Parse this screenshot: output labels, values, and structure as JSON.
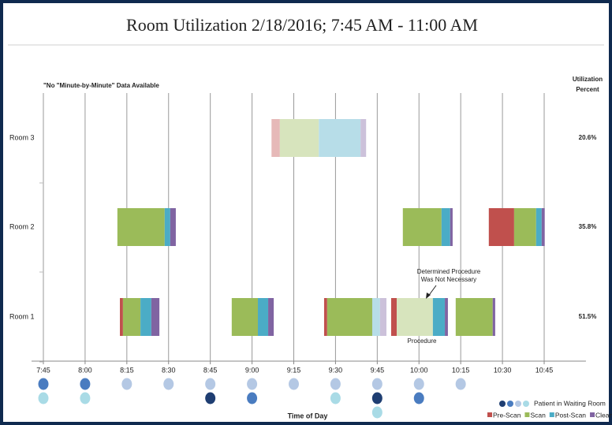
{
  "chart_data": {
    "type": "timeline",
    "title": "Room Utilization 2/18/2016; 7:45 AM - 11:00 AM",
    "x_label": "Time of Day",
    "annotations": {
      "no_data": "\"No \"Minute-by-Minute\" Data Available",
      "not_necessary": [
        "Determined Procedure",
        "Was Not Necessary"
      ],
      "procedure": "Procedure"
    },
    "utilization_label": [
      "Utilization",
      "Percent"
    ],
    "xlim": [
      465,
      660
    ],
    "xticks": [
      {
        "value": 465,
        "label": "7:45"
      },
      {
        "value": 480,
        "label": "8:00"
      },
      {
        "value": 495,
        "label": "8:15"
      },
      {
        "value": 510,
        "label": "8:30"
      },
      {
        "value": 525,
        "label": "8:45"
      },
      {
        "value": 540,
        "label": "9:00"
      },
      {
        "value": 555,
        "label": "9:15"
      },
      {
        "value": 570,
        "label": "9:30"
      },
      {
        "value": 585,
        "label": "9:45"
      },
      {
        "value": 600,
        "label": "10:00"
      },
      {
        "value": 615,
        "label": "10:15"
      },
      {
        "value": 630,
        "label": "10:30"
      },
      {
        "value": 645,
        "label": "10:45"
      }
    ],
    "grid": true,
    "rooms": [
      {
        "name": "Room 3",
        "utilization": 20.6,
        "utilization_label": "20.6%",
        "segments": [
          {
            "start": 547,
            "end": 550,
            "color": "#e6b9b8"
          },
          {
            "start": 550,
            "end": 564,
            "color": "#d7e4bd"
          },
          {
            "start": 564,
            "end": 579,
            "color": "#b7dde8"
          },
          {
            "start": 579,
            "end": 581,
            "color": "#ccc1da"
          }
        ]
      },
      {
        "name": "Room 2",
        "utilization": 35.8,
        "utilization_label": "35.8%",
        "segments": [
          {
            "start": 491.6,
            "end": 508.6,
            "color": "#9bbb59"
          },
          {
            "start": 508.6,
            "end": 510.6,
            "color": "#4bacc6"
          },
          {
            "start": 510.6,
            "end": 512.6,
            "color": "#8064a2"
          },
          {
            "start": 594.2,
            "end": 608.1,
            "color": "#9bbb59"
          },
          {
            "start": 608.1,
            "end": 611.2,
            "color": "#4bacc6"
          },
          {
            "start": 611.2,
            "end": 612.1,
            "color": "#8064a2"
          },
          {
            "start": 625.1,
            "end": 634.2,
            "color": "#c0504d"
          },
          {
            "start": 634.2,
            "end": 642.1,
            "color": "#9bbb59"
          },
          {
            "start": 642.1,
            "end": 644.1,
            "color": "#4bacc6"
          },
          {
            "start": 644.1,
            "end": 645.2,
            "color": "#8064a2"
          }
        ]
      },
      {
        "name": "Room 1",
        "utilization": 51.5,
        "utilization_label": "51.5%",
        "segments": [
          {
            "start": 492.5,
            "end": 493.6,
            "color": "#c0504d"
          },
          {
            "start": 493.6,
            "end": 499.9,
            "color": "#9bbb59"
          },
          {
            "start": 499.9,
            "end": 503.8,
            "color": "#4bacc6"
          },
          {
            "start": 503.8,
            "end": 506.7,
            "color": "#8064a2"
          },
          {
            "start": 532.7,
            "end": 542.1,
            "color": "#9bbb59"
          },
          {
            "start": 542.1,
            "end": 545.8,
            "color": "#4bacc6"
          },
          {
            "start": 545.8,
            "end": 547.8,
            "color": "#8064a2"
          },
          {
            "start": 565.9,
            "end": 567,
            "color": "#c0504d"
          },
          {
            "start": 567,
            "end": 583.2,
            "color": "#9bbb59"
          },
          {
            "start": 583.2,
            "end": 586,
            "color": "#b7dde8"
          },
          {
            "start": 586,
            "end": 588.3,
            "color": "#ccc1da"
          },
          {
            "start": 590,
            "end": 592,
            "color": "#c0504d"
          },
          {
            "start": 592,
            "end": 605,
            "color": "#d7e4bd"
          },
          {
            "start": 605,
            "end": 609.3,
            "color": "#4bacc6"
          },
          {
            "start": 609.3,
            "end": 610.4,
            "color": "#8064a2"
          },
          {
            "start": 613.2,
            "end": 626.5,
            "color": "#9bbb59"
          },
          {
            "start": 626.5,
            "end": 627.4,
            "color": "#8064a2"
          }
        ]
      }
    ],
    "waiting_room": {
      "name": "Patient in Waiting Room",
      "legend_colors": [
        "#1f3e72",
        "#4a7cc0",
        "#b4c8e4",
        "#a9dbe6"
      ],
      "points": [
        {
          "x": 465,
          "colors": [
            "#4a7cc0",
            "#a9dbe6"
          ]
        },
        {
          "x": 480,
          "colors": [
            "#4a7cc0",
            "#a9dbe6"
          ]
        },
        {
          "x": 495,
          "colors": [
            "#b4c8e4"
          ]
        },
        {
          "x": 510,
          "colors": [
            "#b4c8e4"
          ]
        },
        {
          "x": 525,
          "colors": [
            "#b4c8e4",
            "#1f3e72"
          ]
        },
        {
          "x": 540,
          "colors": [
            "#b4c8e4",
            "#4a7cc0"
          ]
        },
        {
          "x": 555,
          "colors": [
            "#b4c8e4"
          ]
        },
        {
          "x": 570,
          "colors": [
            "#b4c8e4",
            "#a9dbe6"
          ]
        },
        {
          "x": 585,
          "colors": [
            "#b4c8e4",
            "#1f3e72",
            "#a9dbe6"
          ]
        },
        {
          "x": 600,
          "colors": [
            "#b4c8e4",
            "#4a7cc0"
          ]
        },
        {
          "x": 615,
          "colors": [
            "#b4c8e4"
          ]
        }
      ]
    },
    "legend": [
      {
        "name": "Pre-Scan",
        "color": "#c0504d"
      },
      {
        "name": "Scan",
        "color": "#9bbb59"
      },
      {
        "name": "Post-Scan",
        "color": "#4bacc6"
      },
      {
        "name": "Clean",
        "color": "#8064a2"
      }
    ]
  }
}
